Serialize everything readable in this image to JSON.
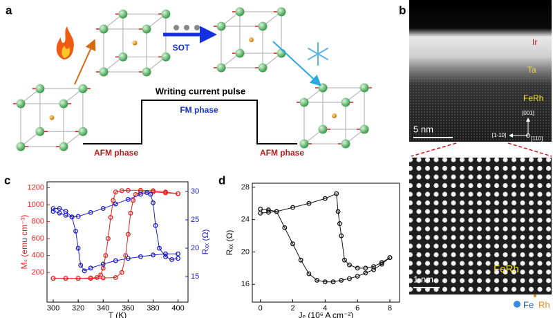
{
  "panel_labels": [
    "a",
    "b",
    "c",
    "d"
  ],
  "diagram": {
    "sot": "SOT",
    "pulse_title": "Writing current pulse",
    "fm": "FM phase",
    "afm_left": "AFM phase",
    "afm_right": "AFM phase"
  },
  "tem": {
    "layers": [
      "Ir",
      "Ta",
      "FeRh"
    ],
    "axes": [
      "[001]",
      "[1-10]",
      "[110]"
    ],
    "scale_top": "5 nm",
    "scale_bottom": "1 nm",
    "label_bottom": "FeRh",
    "legend": [
      "Fe",
      "Rh"
    ]
  },
  "chart_data": [
    {
      "type": "scatter",
      "xlabel": "T (K)",
      "ylabel": "Mₛ (emu cm⁻³)",
      "y2label": "Rₓₓ (Ω)",
      "xlim": [
        295,
        408
      ],
      "xticks": [
        300,
        320,
        340,
        360,
        380,
        400
      ],
      "ylim": [
        -150,
        1270
      ],
      "yticks": [
        200,
        400,
        600,
        800,
        1000,
        1200
      ],
      "y2lim": [
        10.5,
        31.7
      ],
      "y2ticks": [
        15,
        20,
        25,
        30
      ],
      "series": [
        {
          "color": "#e8201f",
          "x": [
            300,
            310,
            320,
            330,
            340,
            350,
            355,
            358,
            360,
            362,
            364,
            366,
            370,
            380,
            390,
            400
          ],
          "values": [
            130,
            130,
            130,
            130,
            135,
            140,
            200,
            400,
            650,
            900,
            1050,
            1120,
            1150,
            1150,
            1140,
            1130
          ]
        },
        {
          "color": "#e8201f",
          "x": [
            400,
            390,
            380,
            370,
            360,
            355,
            350,
            348,
            346,
            344,
            342,
            340,
            338,
            335,
            330,
            320,
            310,
            300
          ],
          "values": [
            1130,
            1150,
            1165,
            1170,
            1170,
            1165,
            1150,
            1050,
            850,
            600,
            400,
            250,
            170,
            140,
            135,
            130,
            130,
            130
          ]
        },
        {
          "color": "#1c1ccc",
          "axis": "y2",
          "x": [
            300,
            305,
            310,
            315,
            320,
            330,
            340,
            350,
            360,
            370,
            375,
            378,
            380,
            382,
            385,
            390,
            395,
            400
          ],
          "values": [
            26.5,
            26.2,
            25.8,
            25.5,
            25.6,
            26.3,
            27,
            27.8,
            28.6,
            29.5,
            29.8,
            29.5,
            28,
            24,
            20,
            18.5,
            18,
            18.2
          ]
        },
        {
          "color": "#1c1ccc",
          "axis": "y2",
          "x": [
            400,
            390,
            380,
            370,
            360,
            350,
            340,
            330,
            325,
            322,
            320,
            318,
            315,
            310,
            305,
            300
          ],
          "values": [
            19,
            19,
            18.8,
            18.5,
            18.2,
            17.8,
            17.2,
            16.5,
            16,
            17,
            20,
            23,
            25.5,
            26.5,
            27,
            27
          ]
        }
      ]
    },
    {
      "type": "scatter",
      "xlabel": "Jₑ (10⁶ A cm⁻²)",
      "ylabel": "Rₓₓ (Ω)",
      "xlim": [
        -0.5,
        8.6
      ],
      "xticks": [
        0,
        2,
        4,
        6,
        8
      ],
      "ylim": [
        13.8,
        28.5
      ],
      "yticks": [
        16,
        20,
        24,
        28
      ],
      "series": [
        {
          "color": "#111111",
          "x": [
            0,
            0.5,
            1,
            1.5,
            2,
            2.5,
            3,
            3.5,
            4,
            4.5,
            5,
            5.5,
            6,
            6.5,
            7,
            7.5,
            8
          ],
          "values": [
            25.3,
            25.2,
            25,
            23,
            21,
            19,
            17.3,
            16.5,
            16.3,
            16.3,
            16.5,
            16.7,
            17,
            17.4,
            17.8,
            18.5,
            19.3
          ]
        },
        {
          "color": "#111111",
          "x": [
            8,
            7.5,
            7,
            6.5,
            6,
            5.5,
            5.2,
            5,
            4.9,
            4.8,
            4.7,
            4,
            3,
            2,
            1,
            0.5,
            0
          ],
          "values": [
            19.3,
            18.7,
            18.2,
            18,
            18,
            18.4,
            19,
            22,
            23.5,
            25,
            27.2,
            26.6,
            26,
            25.5,
            25,
            24.9,
            24.8
          ]
        }
      ]
    }
  ]
}
